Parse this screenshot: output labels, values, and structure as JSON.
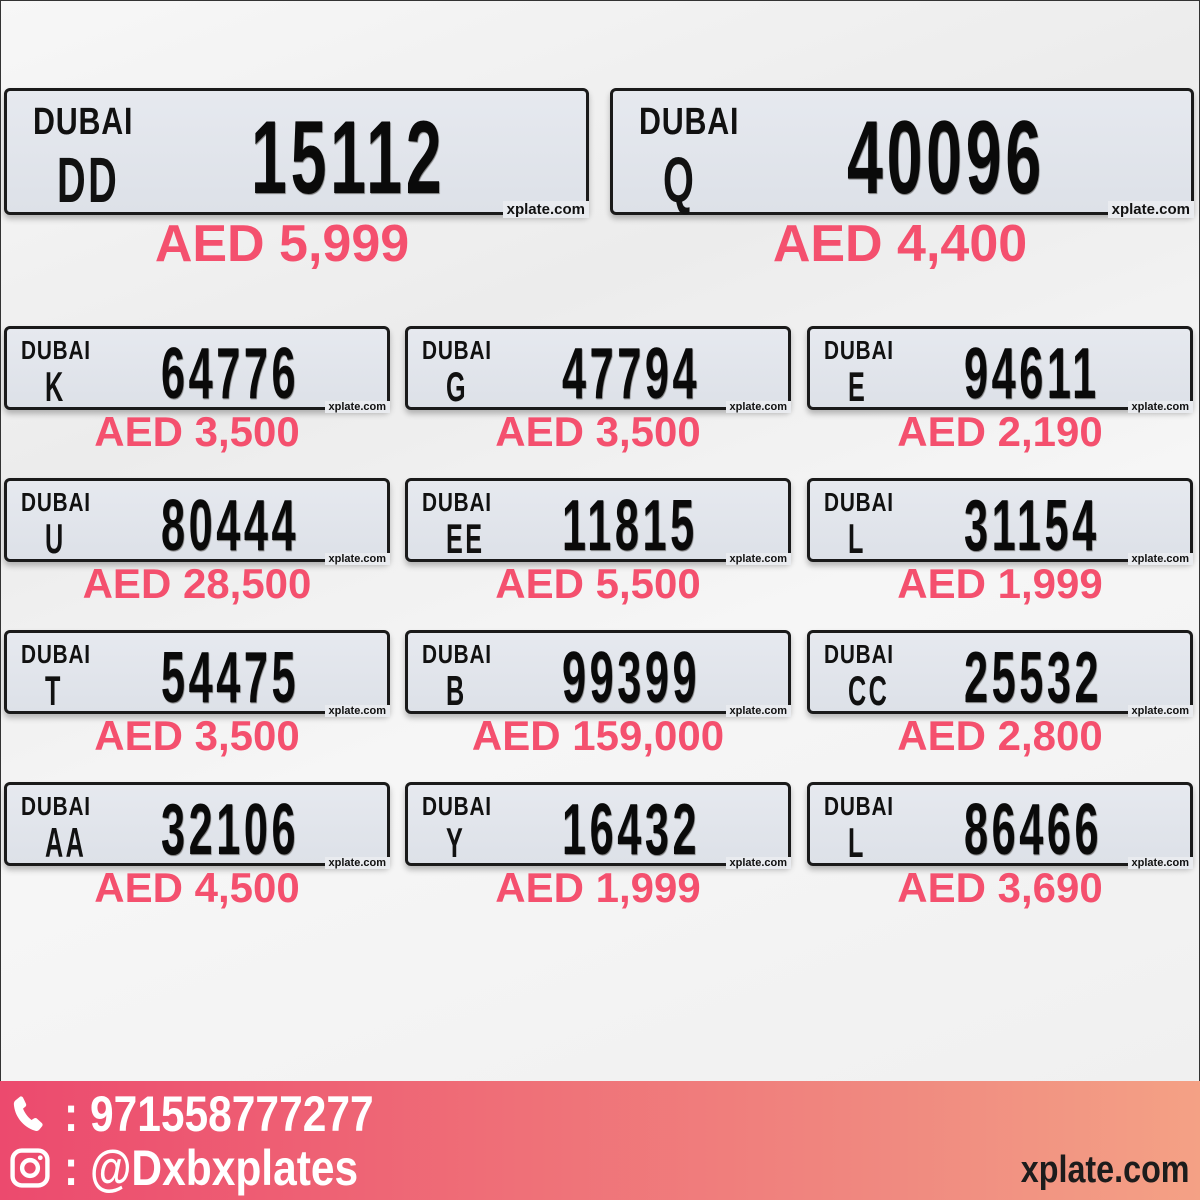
{
  "plate_header": "DUBAI",
  "plate_watermark": "xplate.com",
  "featured": [
    {
      "code": "DD",
      "number": "15112",
      "price": "AED 5,999"
    },
    {
      "code": "Q",
      "number": "40096",
      "price": "AED 4,400"
    }
  ],
  "plates": [
    {
      "code": "K",
      "number": "64776",
      "price": "AED 3,500"
    },
    {
      "code": "G",
      "number": "47794",
      "price": "AED 3,500"
    },
    {
      "code": "E",
      "number": "94611",
      "price": "AED 2,190"
    },
    {
      "code": "U",
      "number": "80444",
      "price": "AED 28,500"
    },
    {
      "code": "EE",
      "number": "11815",
      "price": "AED 5,500"
    },
    {
      "code": "L",
      "number": "31154",
      "price": "AED 1,999"
    },
    {
      "code": "T",
      "number": "54475",
      "price": "AED 3,500"
    },
    {
      "code": "B",
      "number": "99399",
      "price": "AED 159,000"
    },
    {
      "code": "CC",
      "number": "25532",
      "price": "AED 2,800"
    },
    {
      "code": "AA",
      "number": "32106",
      "price": "AED 4,500"
    },
    {
      "code": "Y",
      "number": "16432",
      "price": "AED 1,999"
    },
    {
      "code": "L",
      "number": "86466",
      "price": "AED 3,690"
    }
  ],
  "footer": {
    "phone_sep": ":",
    "phone": "971558777277",
    "instagram_sep": ":",
    "instagram": "@Dxbxplates",
    "site": "xplate.com",
    "phone_icon": "phone-icon",
    "instagram_icon": "instagram-icon"
  },
  "colors": {
    "price": "#f4506e",
    "footer_start": "#ec4a6e",
    "footer_end": "#f4a185"
  }
}
